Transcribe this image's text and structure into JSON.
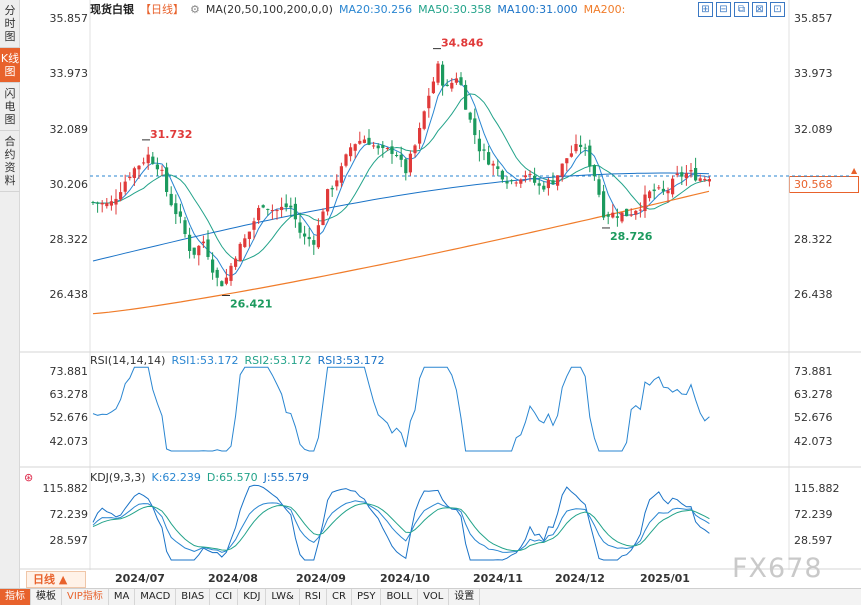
{
  "side_tabs": [
    "分时图",
    "K线图",
    "闪电图",
    "合约资料"
  ],
  "active_side_tab": 1,
  "header": {
    "title": "现货白银",
    "period": "【日线】",
    "ma_label": "MA(20,50,100,200,0,0)",
    "ma20": "MA20:30.256",
    "ma50": "MA50:30.358",
    "ma100": "MA100:31.000",
    "ma200": "MA200:"
  },
  "tool_buttons": [
    "⊞",
    "⊟",
    "⧉",
    "⊠",
    "⊡"
  ],
  "price_axis": [
    "35.857",
    "33.973",
    "32.089",
    "30.206",
    "28.322",
    "26.438"
  ],
  "current_price": "30.568",
  "annotations": {
    "high1": "31.732",
    "high2": "34.846",
    "low1": "26.421",
    "low2": "28.726"
  },
  "rsi": {
    "label": "RSI(14,14,14)",
    "rsi1": "RSI1:53.172",
    "rsi2": "RSI2:53.172",
    "rsi3": "RSI3:53.172",
    "axis": [
      "73.881",
      "63.278",
      "52.676",
      "42.073"
    ]
  },
  "kdj": {
    "label": "KDJ(9,3,3)",
    "k": "K:62.239",
    "d": "D:65.570",
    "j": "J:55.579",
    "axis": [
      "115.882",
      "72.239",
      "28.597"
    ]
  },
  "dates": [
    "2024/07",
    "2024/08",
    "2024/09",
    "2024/10",
    "2024/11",
    "2024/12",
    "2025/01"
  ],
  "period_tab": "日线 ▲",
  "watermark": "FX678",
  "bottom_tabs": [
    "指标",
    "模板",
    "VIP指标",
    "MA",
    "MACD",
    "BIAS",
    "CCI",
    "KDJ",
    "LW&",
    "RSI",
    "CR",
    "PSY",
    "BOLL",
    "VOL",
    "设置"
  ],
  "colors": {
    "up": "#e03a3a",
    "down": "#1c9a5e",
    "ma20": "#2a86d1",
    "ma50": "#23a38a",
    "ma100": "#1a73c7",
    "ma200": "#f07c2a",
    "accent": "#e8622c"
  }
}
